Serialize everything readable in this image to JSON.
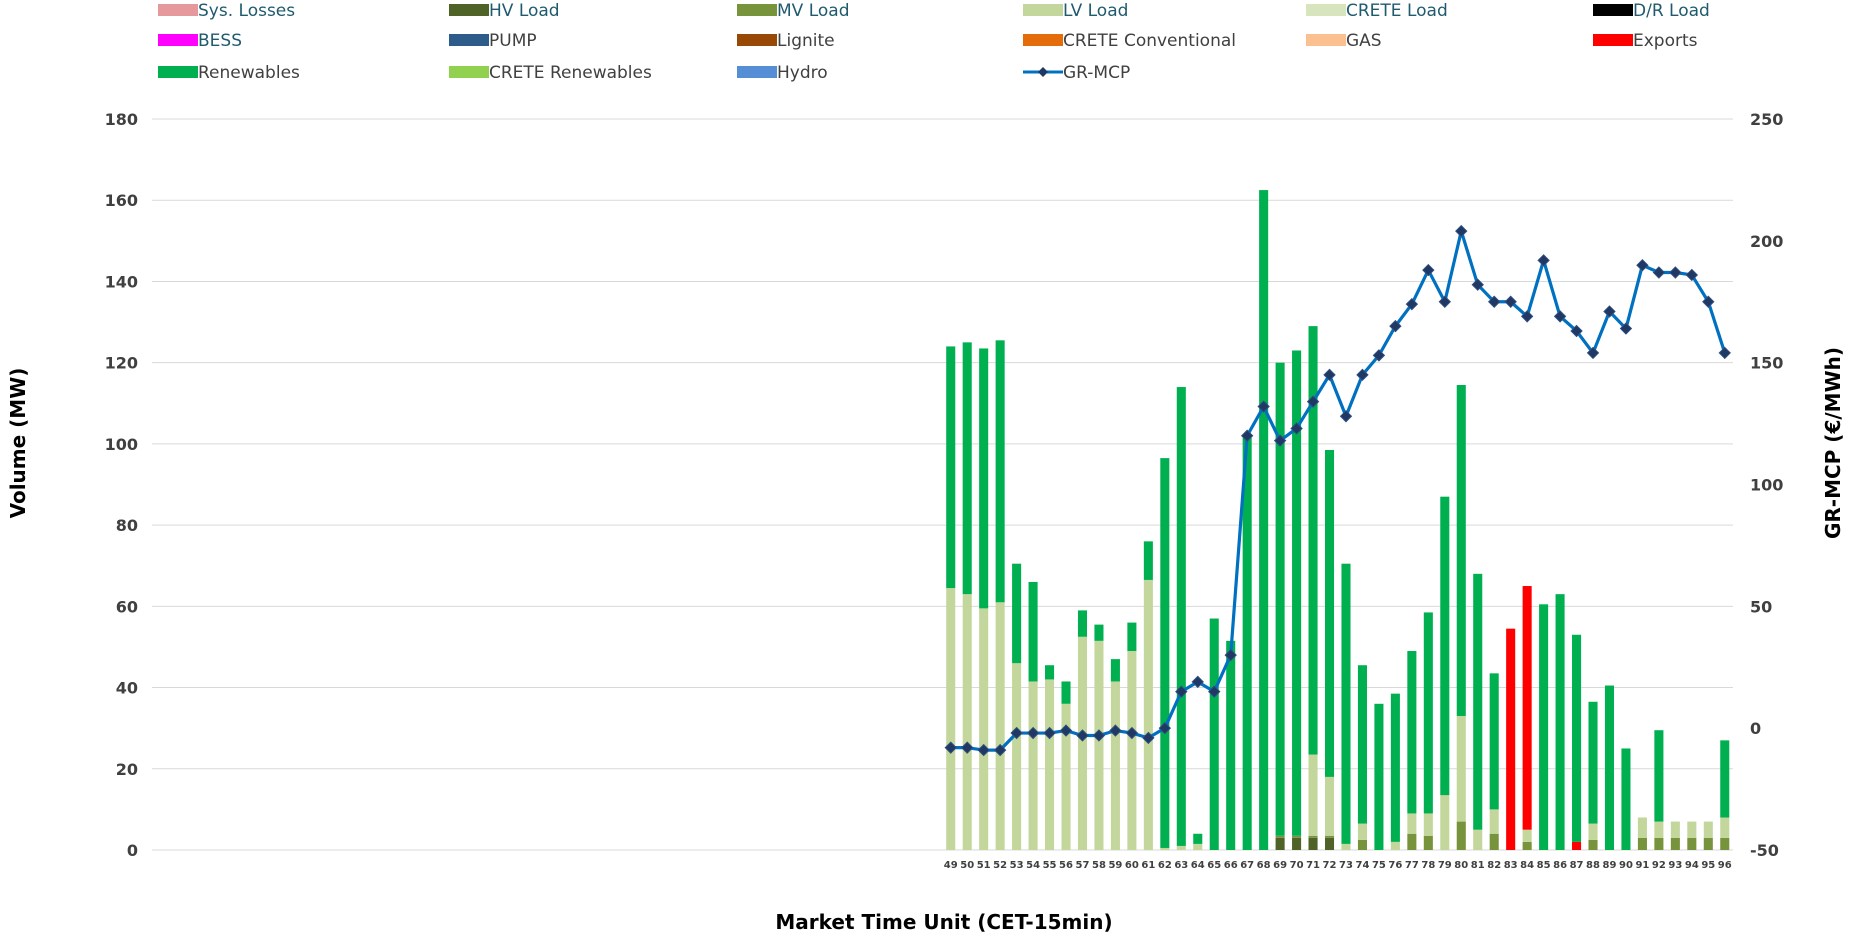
{
  "chart_data": {
    "type": "bar",
    "stacked": true,
    "xlabel": "Market Time Unit (CET-15min)",
    "ylabel": "Volume (MW)",
    "y2label": "GR-MCP (€/MWh)",
    "ylim": [
      0,
      180
    ],
    "y2lim": [
      -50,
      250
    ],
    "yticks": [
      0,
      20,
      40,
      60,
      80,
      100,
      120,
      140,
      160,
      180
    ],
    "y2ticks": [
      -50,
      0,
      50,
      100,
      150,
      200,
      250
    ],
    "grid": true,
    "legend_position": "top",
    "x_range": [
      1,
      96
    ],
    "categories": [
      49,
      50,
      51,
      52,
      53,
      54,
      55,
      56,
      57,
      58,
      59,
      60,
      61,
      62,
      63,
      64,
      65,
      66,
      67,
      68,
      69,
      70,
      71,
      72,
      73,
      74,
      75,
      76,
      77,
      78,
      79,
      80,
      81,
      82,
      83,
      84,
      85,
      86,
      87,
      88,
      89,
      90,
      91,
      92,
      93,
      94,
      95,
      96
    ],
    "series": [
      {
        "name": "Sys. Losses",
        "color": "#e6999c",
        "type": "bar",
        "values": [
          0,
          0,
          0,
          0,
          0,
          0,
          0,
          0,
          0,
          0,
          0,
          0,
          0,
          0,
          0,
          0,
          0,
          0,
          0,
          0,
          0,
          0,
          0,
          0,
          0,
          0,
          0,
          0,
          0,
          0,
          0,
          0,
          0,
          0,
          0,
          0,
          0,
          0,
          0,
          0,
          0,
          0,
          0,
          0,
          0,
          0,
          0,
          0
        ]
      },
      {
        "name": "HV Load",
        "color": "#4f6228",
        "type": "bar",
        "values": [
          0,
          0,
          0,
          0,
          0,
          0,
          0,
          0,
          0,
          0,
          0,
          0,
          0,
          0,
          0,
          0,
          0,
          0,
          0,
          0,
          3,
          3,
          3,
          3,
          0,
          0,
          0,
          0,
          0,
          0,
          0,
          0,
          0,
          0,
          0,
          0,
          0,
          0,
          0,
          0,
          0,
          0,
          0,
          0,
          0,
          0,
          0,
          0
        ]
      },
      {
        "name": "MV Load",
        "color": "#77933c",
        "type": "bar",
        "values": [
          0,
          0,
          0,
          0,
          0,
          0,
          0,
          0,
          0,
          0,
          0,
          0,
          0,
          0,
          0,
          0,
          0,
          0,
          0,
          0,
          0.5,
          0.5,
          0.5,
          0.5,
          0,
          2.5,
          0,
          0,
          4,
          3.5,
          0,
          7,
          0,
          4,
          0,
          2,
          0,
          0,
          0,
          2.5,
          0,
          0,
          3,
          3,
          3,
          3,
          3,
          3
        ]
      },
      {
        "name": "LV Load",
        "color": "#c3d69b",
        "type": "bar",
        "values": [
          64.5,
          63,
          59.5,
          61,
          46,
          41.5,
          42,
          36,
          52.5,
          51.5,
          41.5,
          49,
          66.5,
          0.5,
          1,
          1.5,
          0,
          0,
          0,
          0,
          0,
          0,
          20,
          14.5,
          1.5,
          4,
          0,
          2,
          5,
          5.5,
          13.5,
          26,
          5,
          6,
          0,
          3,
          0,
          0,
          0,
          4,
          0,
          0,
          5,
          4,
          4,
          4,
          4,
          5
        ]
      },
      {
        "name": "CRETE Load",
        "color": "#d7e4bd",
        "type": "bar",
        "values": [
          0,
          0,
          0,
          0,
          0,
          0,
          0,
          0,
          0,
          0,
          0,
          0,
          0,
          0,
          0,
          0,
          0,
          0,
          0,
          0,
          0,
          0,
          0,
          0,
          0,
          0,
          0,
          0,
          0,
          0,
          0,
          0,
          0,
          0,
          0,
          0,
          0,
          0,
          0,
          0,
          0,
          0,
          0,
          0,
          0,
          0,
          0,
          0
        ]
      },
      {
        "name": "D/R Load",
        "color": "#000000",
        "type": "bar",
        "values": [
          0,
          0,
          0,
          0,
          0,
          0,
          0,
          0,
          0,
          0,
          0,
          0,
          0,
          0,
          0,
          0,
          0,
          0,
          0,
          0,
          0,
          0,
          0,
          0,
          0,
          0,
          0,
          0,
          0,
          0,
          0,
          0,
          0,
          0,
          0,
          0,
          0,
          0,
          0,
          0,
          0,
          0,
          0,
          0,
          0,
          0,
          0,
          0
        ]
      },
      {
        "name": "BESS",
        "color": "#ff00ff",
        "type": "bar",
        "values": [
          0,
          0,
          0,
          0,
          0,
          0,
          0,
          0,
          0,
          0,
          0,
          0,
          0,
          0,
          0,
          0,
          0,
          0,
          0,
          0,
          0,
          0,
          0,
          0,
          0,
          0,
          0,
          0,
          0,
          0,
          0,
          0,
          0,
          0,
          0,
          0,
          0,
          0,
          0,
          0,
          0,
          0,
          0,
          0,
          0,
          0,
          0,
          0
        ]
      },
      {
        "name": "PUMP",
        "color": "#2e5c8a",
        "type": "bar",
        "values": [
          0,
          0,
          0,
          0,
          0,
          0,
          0,
          0,
          0,
          0,
          0,
          0,
          0,
          0,
          0,
          0,
          0,
          0,
          0,
          0,
          0,
          0,
          0,
          0,
          0,
          0,
          0,
          0,
          0,
          0,
          0,
          0,
          0,
          0,
          0,
          0,
          0,
          0,
          0,
          0,
          0,
          0,
          0,
          0,
          0,
          0,
          0,
          0
        ]
      },
      {
        "name": "Lignite",
        "color": "#984807",
        "type": "bar",
        "values": [
          0,
          0,
          0,
          0,
          0,
          0,
          0,
          0,
          0,
          0,
          0,
          0,
          0,
          0,
          0,
          0,
          0,
          0,
          0,
          0,
          0,
          0,
          0,
          0,
          0,
          0,
          0,
          0,
          0,
          0,
          0,
          0,
          0,
          0,
          0,
          0,
          0,
          0,
          0,
          0,
          0,
          0,
          0,
          0,
          0,
          0,
          0,
          0
        ]
      },
      {
        "name": "CRETE Conventional",
        "color": "#e46c0a",
        "type": "bar",
        "values": [
          0,
          0,
          0,
          0,
          0,
          0,
          0,
          0,
          0,
          0,
          0,
          0,
          0,
          0,
          0,
          0,
          0,
          0,
          0,
          0,
          0,
          0,
          0,
          0,
          0,
          0,
          0,
          0,
          0,
          0,
          0,
          0,
          0,
          0,
          0,
          0,
          0,
          0,
          0,
          0,
          0,
          0,
          0,
          0,
          0,
          0,
          0,
          0
        ]
      },
      {
        "name": "GAS",
        "color": "#fac090",
        "type": "bar",
        "values": [
          0,
          0,
          0,
          0,
          0,
          0,
          0,
          0,
          0,
          0,
          0,
          0,
          0,
          0,
          0,
          0,
          0,
          0,
          0,
          0,
          0,
          0,
          0,
          0,
          0,
          0,
          0,
          0,
          0,
          0,
          0,
          0,
          0,
          0,
          0,
          0,
          0,
          0,
          0,
          0,
          0,
          0,
          0,
          0,
          0,
          0,
          0,
          0
        ]
      },
      {
        "name": "Exports",
        "color": "#ff0000",
        "type": "bar",
        "values": [
          0,
          0,
          0,
          0,
          0,
          0,
          0,
          0,
          0,
          0,
          0,
          0,
          0,
          0,
          0,
          0,
          0,
          0,
          0,
          0,
          0,
          0,
          0,
          0,
          0,
          0,
          0,
          0,
          0,
          0,
          0,
          0,
          0,
          0,
          54.5,
          60,
          0,
          0,
          2,
          0,
          0,
          0,
          0,
          0,
          0,
          0,
          0,
          0
        ]
      },
      {
        "name": "Renewables",
        "color": "#00b050",
        "type": "bar",
        "values": [
          59.5,
          62,
          64,
          64.5,
          24.5,
          24.5,
          3.5,
          5.5,
          6.5,
          4,
          5.5,
          7,
          9.5,
          96,
          113,
          2.5,
          57,
          51.5,
          101.5,
          162.5,
          116.5,
          119.5,
          105.5,
          80.5,
          69,
          39,
          36,
          36.5,
          40,
          49.5,
          73.5,
          81.5,
          63,
          33.5,
          0,
          0,
          60.5,
          63,
          51,
          30,
          40.5,
          25,
          0,
          22.5,
          0,
          0,
          0,
          19
        ]
      },
      {
        "name": "CRETE Renewables",
        "color": "#92d050",
        "type": "bar",
        "values": [
          0,
          0,
          0,
          0,
          0,
          0,
          0,
          0,
          0,
          0,
          0,
          0,
          0,
          0,
          0,
          0,
          0,
          0,
          0,
          0,
          0,
          0,
          0,
          0,
          0,
          0,
          0,
          0,
          0,
          0,
          0,
          0,
          0,
          0,
          0,
          0,
          0,
          0,
          0,
          0,
          0,
          0,
          0,
          0,
          0,
          0,
          0,
          0
        ]
      },
      {
        "name": "Hydro",
        "color": "#558ed5",
        "type": "bar",
        "values": [
          0,
          0,
          0,
          0,
          0,
          0,
          0,
          0,
          0,
          0,
          0,
          0,
          0,
          0,
          0,
          0,
          0,
          0,
          0,
          0,
          0,
          0,
          0,
          0,
          0,
          0,
          0,
          0,
          0,
          0,
          0,
          0,
          0,
          0,
          0,
          0,
          0,
          0,
          0,
          0,
          0,
          0,
          0,
          0,
          0,
          0,
          0,
          0
        ]
      },
      {
        "name": "GR-MCP",
        "color": "#0070c0",
        "marker_color": "#1f3864",
        "type": "line",
        "axis": "right",
        "values": [
          -8,
          -8,
          -9,
          -9,
          -2,
          -2,
          -2,
          -1,
          -3,
          -3,
          -1,
          -2,
          -4,
          0,
          15,
          19,
          15,
          30,
          120,
          132,
          118,
          123,
          134,
          145,
          128,
          145,
          153,
          165,
          174,
          188,
          175,
          204,
          182,
          175,
          175,
          169,
          192,
          169,
          163,
          154,
          171,
          164,
          190,
          187,
          187,
          186,
          175,
          154
        ]
      }
    ]
  }
}
